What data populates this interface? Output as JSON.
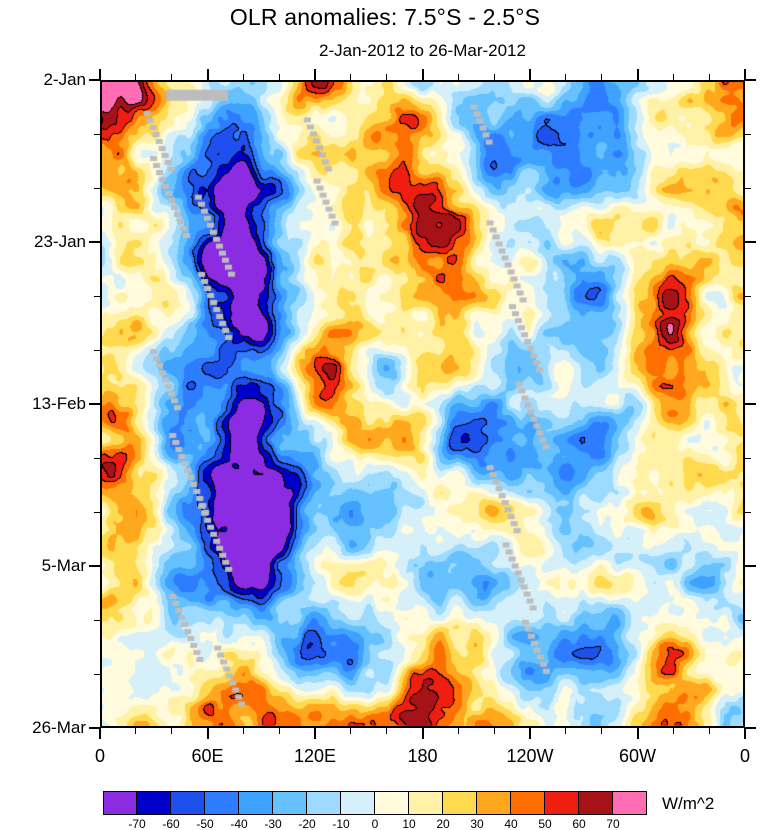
{
  "chart_data": {
    "type": "heatmap",
    "title": "OLR anomalies: 7.5°S - 2.5°S",
    "subtitle": "2-Jan-2012 to 26-Mar-2012",
    "x_axis": {
      "ticks": [
        "0",
        "60E",
        "120E",
        "180",
        "120W",
        "60W",
        "0"
      ],
      "minor_ticks_per_major": 2
    },
    "y_axis": {
      "ticks": [
        "2-Jan",
        "23-Jan",
        "13-Feb",
        "5-Mar",
        "26-Mar"
      ],
      "minor_tick_count": 12
    },
    "colorbar": {
      "unit": "W/m^2",
      "levels": [
        -70,
        -60,
        -50,
        -40,
        -30,
        -20,
        -10,
        0,
        10,
        20,
        30,
        40,
        50,
        60,
        70
      ],
      "colors": [
        "#8B2BE2",
        "#0000CD",
        "#1E50EE",
        "#2E7CFF",
        "#3FA2FF",
        "#66C1FF",
        "#9CDBFF",
        "#D6F0FA",
        "#FFFBDC",
        "#FFF1A6",
        "#FFD94E",
        "#FFA81E",
        "#FF6E00",
        "#F01E10",
        "#A61216",
        "#FF6EB4"
      ],
      "missing_color": "#BDBDBD"
    }
  }
}
